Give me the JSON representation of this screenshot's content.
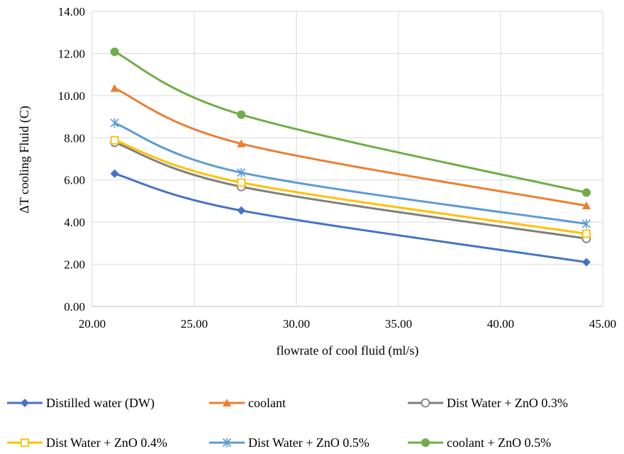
{
  "chart_data": {
    "type": "line",
    "title": "",
    "xlabel": "flowrate  of cool fluid  (ml/s)",
    "ylabel": "ΔT cooling Fluid (C)",
    "xlim": [
      20,
      45
    ],
    "ylim": [
      0,
      14
    ],
    "xticks": [
      "20.00",
      "25.00",
      "30.00",
      "35.00",
      "40.00",
      "45.00"
    ],
    "yticks": [
      "0.00",
      "2.00",
      "4.00",
      "6.00",
      "8.00",
      "10.00",
      "12.00",
      "14.00"
    ],
    "grid": true,
    "smooth": true,
    "legend_position": "bottom",
    "x": [
      21.1,
      27.3,
      44.2
    ],
    "series": [
      {
        "name": "Distilled water (DW)",
        "values": [
          6.3,
          4.55,
          2.1
        ],
        "color": "#4472C4",
        "marker": "diamond"
      },
      {
        "name": "coolant",
        "values": [
          10.35,
          7.72,
          4.78
        ],
        "color": "#ED7D31",
        "marker": "triangle"
      },
      {
        "name": "Dist Water + ZnO 0.3%",
        "values": [
          7.78,
          5.68,
          3.22
        ],
        "color": "#7F7F7F",
        "marker": "circle-open"
      },
      {
        "name": "Dist Water + ZnO 0.4%",
        "values": [
          7.88,
          5.88,
          3.45
        ],
        "color": "#FFC000",
        "marker": "square-open"
      },
      {
        "name": "Dist Water + ZnO 0.5%",
        "values": [
          8.7,
          6.35,
          3.92
        ],
        "color": "#5B9BD5",
        "marker": "star"
      },
      {
        "name": "coolant + ZnO 0.5%",
        "values": [
          12.08,
          9.1,
          5.4
        ],
        "color": "#70AD47",
        "marker": "circle"
      }
    ]
  }
}
